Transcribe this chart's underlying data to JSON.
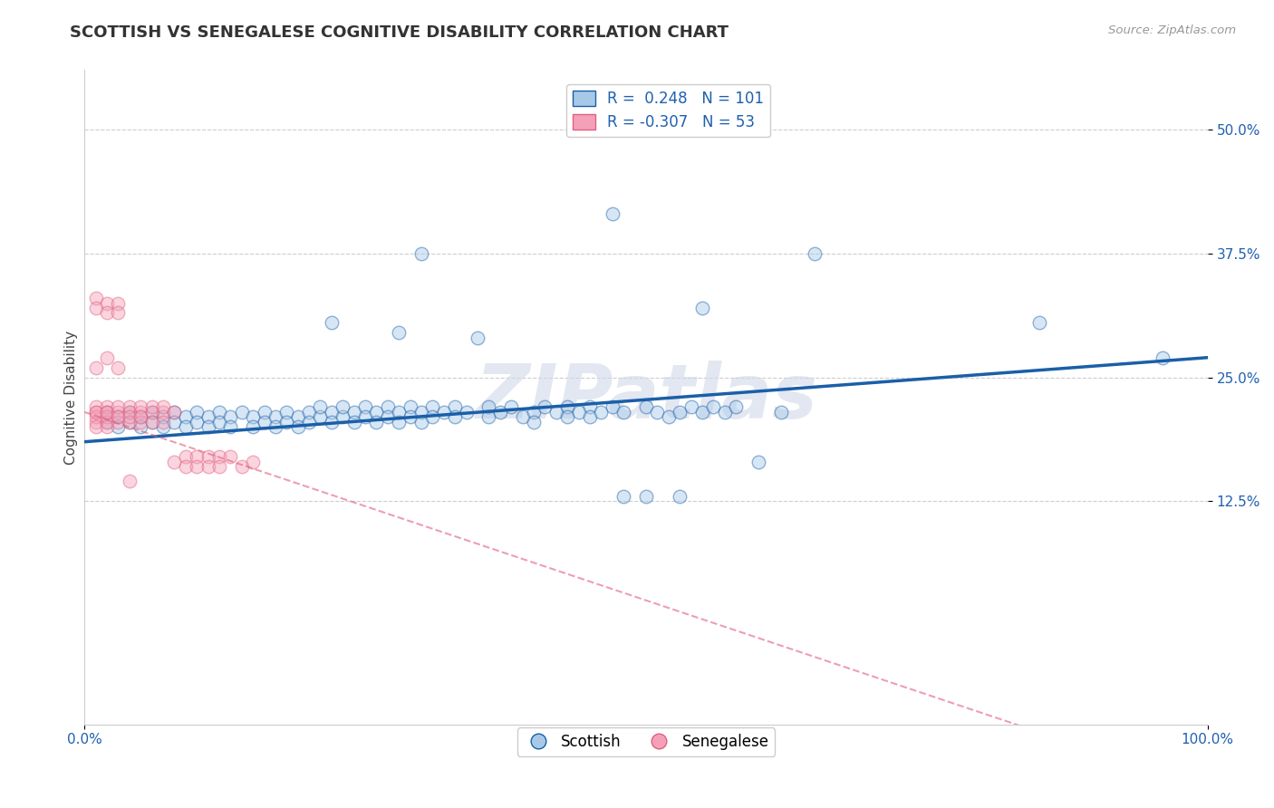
{
  "title": "SCOTTISH VS SENEGALESE COGNITIVE DISABILITY CORRELATION CHART",
  "source_text": "Source: ZipAtlas.com",
  "ylabel": "Cognitive Disability",
  "xlim": [
    0.0,
    1.0
  ],
  "ylim": [
    -0.1,
    0.56
  ],
  "xtick_labels": [
    "0.0%",
    "100.0%"
  ],
  "xtick_positions": [
    0.0,
    1.0
  ],
  "ytick_labels": [
    "12.5%",
    "25.0%",
    "37.5%",
    "50.0%"
  ],
  "ytick_positions": [
    0.125,
    0.25,
    0.375,
    0.5
  ],
  "legend_r_scottish": "0.248",
  "legend_n_scottish": "101",
  "legend_r_senegalese": "-0.307",
  "legend_n_senegalese": "53",
  "scottish_color": "#a8c8e8",
  "senegalese_color": "#f4a0b8",
  "regression_scottish_color": "#1a5fa8",
  "regression_senegalese_color": "#e06080",
  "background_color": "#ffffff",
  "watermark_text": "ZIPatlas",
  "scottish_slope": 0.085,
  "scottish_intercept": 0.185,
  "senegalese_slope": -0.38,
  "senegalese_intercept": 0.215,
  "scottish_points": [
    [
      0.02,
      0.215
    ],
    [
      0.02,
      0.205
    ],
    [
      0.03,
      0.21
    ],
    [
      0.03,
      0.2
    ],
    [
      0.04,
      0.215
    ],
    [
      0.04,
      0.205
    ],
    [
      0.05,
      0.21
    ],
    [
      0.05,
      0.2
    ],
    [
      0.06,
      0.215
    ],
    [
      0.06,
      0.205
    ],
    [
      0.07,
      0.21
    ],
    [
      0.07,
      0.2
    ],
    [
      0.08,
      0.215
    ],
    [
      0.08,
      0.205
    ],
    [
      0.09,
      0.21
    ],
    [
      0.09,
      0.2
    ],
    [
      0.1,
      0.215
    ],
    [
      0.1,
      0.205
    ],
    [
      0.11,
      0.21
    ],
    [
      0.11,
      0.2
    ],
    [
      0.12,
      0.215
    ],
    [
      0.12,
      0.205
    ],
    [
      0.13,
      0.21
    ],
    [
      0.13,
      0.2
    ],
    [
      0.14,
      0.215
    ],
    [
      0.15,
      0.21
    ],
    [
      0.15,
      0.2
    ],
    [
      0.16,
      0.215
    ],
    [
      0.16,
      0.205
    ],
    [
      0.17,
      0.21
    ],
    [
      0.17,
      0.2
    ],
    [
      0.18,
      0.215
    ],
    [
      0.18,
      0.205
    ],
    [
      0.19,
      0.21
    ],
    [
      0.19,
      0.2
    ],
    [
      0.2,
      0.215
    ],
    [
      0.2,
      0.205
    ],
    [
      0.21,
      0.21
    ],
    [
      0.21,
      0.22
    ],
    [
      0.22,
      0.215
    ],
    [
      0.22,
      0.205
    ],
    [
      0.23,
      0.21
    ],
    [
      0.23,
      0.22
    ],
    [
      0.24,
      0.215
    ],
    [
      0.24,
      0.205
    ],
    [
      0.25,
      0.22
    ],
    [
      0.25,
      0.21
    ],
    [
      0.26,
      0.215
    ],
    [
      0.26,
      0.205
    ],
    [
      0.27,
      0.22
    ],
    [
      0.27,
      0.21
    ],
    [
      0.28,
      0.215
    ],
    [
      0.28,
      0.205
    ],
    [
      0.29,
      0.22
    ],
    [
      0.29,
      0.21
    ],
    [
      0.3,
      0.215
    ],
    [
      0.3,
      0.205
    ],
    [
      0.31,
      0.22
    ],
    [
      0.31,
      0.21
    ],
    [
      0.32,
      0.215
    ],
    [
      0.33,
      0.22
    ],
    [
      0.33,
      0.21
    ],
    [
      0.34,
      0.215
    ],
    [
      0.35,
      0.29
    ],
    [
      0.36,
      0.22
    ],
    [
      0.36,
      0.21
    ],
    [
      0.37,
      0.215
    ],
    [
      0.38,
      0.22
    ],
    [
      0.39,
      0.21
    ],
    [
      0.4,
      0.215
    ],
    [
      0.4,
      0.205
    ],
    [
      0.41,
      0.22
    ],
    [
      0.42,
      0.215
    ],
    [
      0.43,
      0.22
    ],
    [
      0.43,
      0.21
    ],
    [
      0.44,
      0.215
    ],
    [
      0.45,
      0.22
    ],
    [
      0.45,
      0.21
    ],
    [
      0.46,
      0.215
    ],
    [
      0.47,
      0.22
    ],
    [
      0.48,
      0.215
    ],
    [
      0.48,
      0.13
    ],
    [
      0.5,
      0.22
    ],
    [
      0.5,
      0.13
    ],
    [
      0.51,
      0.215
    ],
    [
      0.52,
      0.21
    ],
    [
      0.53,
      0.215
    ],
    [
      0.53,
      0.13
    ],
    [
      0.54,
      0.22
    ],
    [
      0.55,
      0.215
    ],
    [
      0.56,
      0.22
    ],
    [
      0.57,
      0.215
    ],
    [
      0.58,
      0.22
    ],
    [
      0.6,
      0.165
    ],
    [
      0.62,
      0.215
    ],
    [
      0.3,
      0.375
    ],
    [
      0.47,
      0.415
    ],
    [
      0.55,
      0.32
    ],
    [
      0.65,
      0.375
    ],
    [
      0.85,
      0.305
    ],
    [
      0.96,
      0.27
    ],
    [
      0.22,
      0.305
    ],
    [
      0.28,
      0.295
    ]
  ],
  "senegalese_points": [
    [
      0.01,
      0.215
    ],
    [
      0.01,
      0.205
    ],
    [
      0.01,
      0.22
    ],
    [
      0.01,
      0.21
    ],
    [
      0.01,
      0.215
    ],
    [
      0.01,
      0.2
    ],
    [
      0.02,
      0.215
    ],
    [
      0.02,
      0.205
    ],
    [
      0.02,
      0.22
    ],
    [
      0.02,
      0.21
    ],
    [
      0.02,
      0.215
    ],
    [
      0.02,
      0.2
    ],
    [
      0.03,
      0.215
    ],
    [
      0.03,
      0.205
    ],
    [
      0.03,
      0.22
    ],
    [
      0.03,
      0.21
    ],
    [
      0.04,
      0.215
    ],
    [
      0.04,
      0.205
    ],
    [
      0.04,
      0.22
    ],
    [
      0.04,
      0.21
    ],
    [
      0.05,
      0.215
    ],
    [
      0.05,
      0.205
    ],
    [
      0.05,
      0.22
    ],
    [
      0.05,
      0.21
    ],
    [
      0.06,
      0.215
    ],
    [
      0.06,
      0.205
    ],
    [
      0.06,
      0.22
    ],
    [
      0.07,
      0.215
    ],
    [
      0.07,
      0.205
    ],
    [
      0.07,
      0.22
    ],
    [
      0.08,
      0.215
    ],
    [
      0.08,
      0.165
    ],
    [
      0.09,
      0.17
    ],
    [
      0.09,
      0.16
    ],
    [
      0.1,
      0.17
    ],
    [
      0.1,
      0.16
    ],
    [
      0.11,
      0.17
    ],
    [
      0.11,
      0.16
    ],
    [
      0.12,
      0.17
    ],
    [
      0.12,
      0.16
    ],
    [
      0.13,
      0.17
    ],
    [
      0.14,
      0.16
    ],
    [
      0.15,
      0.165
    ],
    [
      0.01,
      0.33
    ],
    [
      0.01,
      0.32
    ],
    [
      0.02,
      0.325
    ],
    [
      0.02,
      0.315
    ],
    [
      0.03,
      0.325
    ],
    [
      0.03,
      0.315
    ],
    [
      0.02,
      0.27
    ],
    [
      0.03,
      0.26
    ],
    [
      0.01,
      0.26
    ],
    [
      0.04,
      0.145
    ]
  ],
  "title_fontsize": 13,
  "axis_label_fontsize": 11,
  "tick_fontsize": 11,
  "legend_fontsize": 12,
  "watermark_fontsize": 60,
  "scatter_size": 110,
  "scatter_alpha": 0.45,
  "scatter_linewidth": 1.0
}
